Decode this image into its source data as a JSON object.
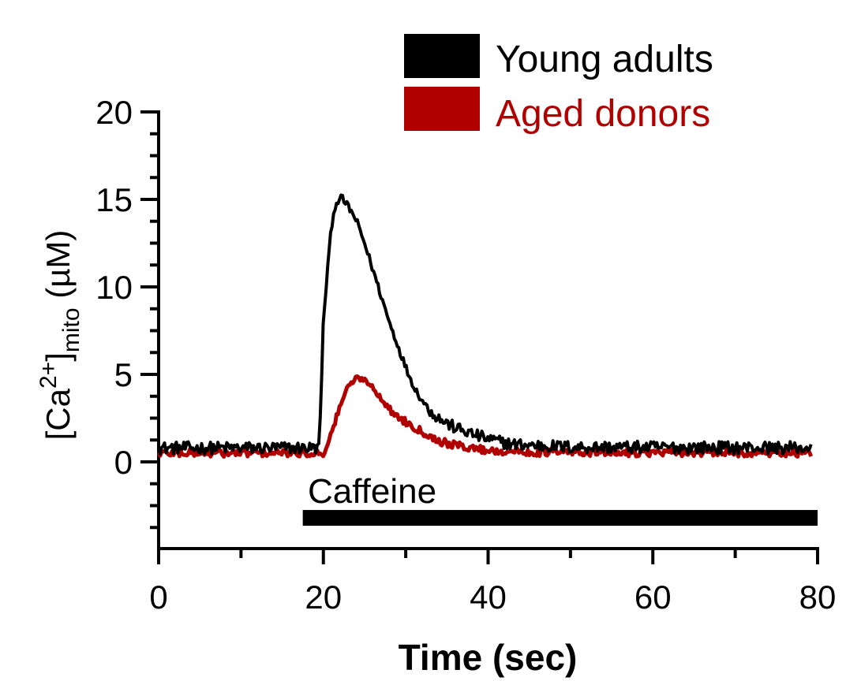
{
  "chart_data": {
    "type": "line",
    "title": "",
    "xlabel": "Time (sec)",
    "ylabel": {
      "bracket_open": "[Ca",
      "superscript": "2+",
      "bracket_close": "]",
      "subscript": "mito",
      "units": " (µM)"
    },
    "xlim": [
      0,
      80
    ],
    "ylim": [
      -5,
      20
    ],
    "x_ticks": [
      0,
      20,
      40,
      60,
      80
    ],
    "x_tick_labels": [
      "0",
      "20",
      "40",
      "60",
      "80"
    ],
    "y_ticks": [
      0,
      5,
      10,
      15,
      20
    ],
    "y_tick_labels": [
      "0",
      "5",
      "10",
      "15",
      "20"
    ],
    "x_minor_step": 10,
    "y_minor_step": 1.25,
    "grid": false,
    "legend_position": "top-right",
    "series": [
      {
        "name": "Young adults",
        "color": "#000000",
        "keypoints": [
          [
            0,
            0.8
          ],
          [
            19.5,
            0.8
          ],
          [
            20.0,
            8.0
          ],
          [
            20.5,
            11.0
          ],
          [
            21.0,
            13.5
          ],
          [
            21.5,
            14.8
          ],
          [
            22.2,
            15.1
          ],
          [
            23.0,
            14.6
          ],
          [
            24.0,
            13.8
          ],
          [
            25.0,
            12.5
          ],
          [
            26.0,
            11.0
          ],
          [
            27.0,
            9.5
          ],
          [
            28.0,
            8.0
          ],
          [
            29.0,
            6.7
          ],
          [
            30.0,
            5.4
          ],
          [
            31.0,
            4.3
          ],
          [
            32.0,
            3.5
          ],
          [
            33.0,
            2.9
          ],
          [
            34.0,
            2.5
          ],
          [
            35.0,
            2.2
          ],
          [
            36.0,
            1.95
          ],
          [
            38.0,
            1.6
          ],
          [
            40.0,
            1.3
          ],
          [
            43.0,
            1.0
          ],
          [
            50.0,
            0.85
          ],
          [
            80.0,
            0.8
          ]
        ],
        "noise_amplitude": 0.35
      },
      {
        "name": "Aged donors",
        "color": "#b00000",
        "keypoints": [
          [
            0,
            0.5
          ],
          [
            20.0,
            0.5
          ],
          [
            21.0,
            1.6
          ],
          [
            22.0,
            3.2
          ],
          [
            23.0,
            4.3
          ],
          [
            24.0,
            4.8
          ],
          [
            25.0,
            4.7
          ],
          [
            26.0,
            4.3
          ],
          [
            27.0,
            3.6
          ],
          [
            28.0,
            3.0
          ],
          [
            29.0,
            2.6
          ],
          [
            30.0,
            2.3
          ],
          [
            31.0,
            2.0
          ],
          [
            32.0,
            1.75
          ],
          [
            33.0,
            1.45
          ],
          [
            34.0,
            1.2
          ],
          [
            36.0,
            0.95
          ],
          [
            38.0,
            0.8
          ],
          [
            40.0,
            0.65
          ],
          [
            45.0,
            0.55
          ],
          [
            80.0,
            0.5
          ]
        ],
        "noise_amplitude": 0.22
      }
    ],
    "annotations": [
      {
        "label": "Caffeine",
        "x_start": 17.5,
        "x_end": 80,
        "y": -3.2
      }
    ]
  }
}
